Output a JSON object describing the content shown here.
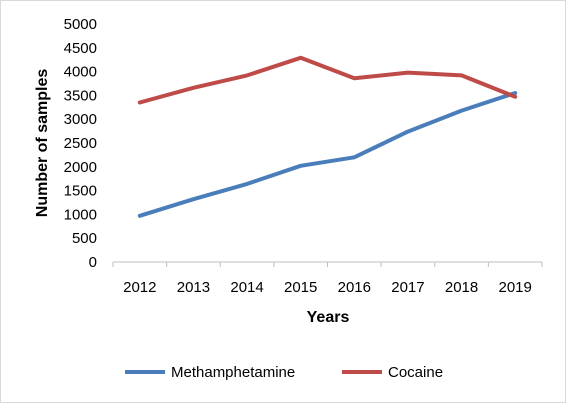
{
  "chart_data": {
    "type": "line",
    "title": "",
    "xlabel": "Years",
    "ylabel": "Number of samples",
    "categories": [
      "2012",
      "2013",
      "2014",
      "2015",
      "2016",
      "2017",
      "2018",
      "2019"
    ],
    "ylim": [
      0,
      5000
    ],
    "yticks": [
      0,
      500,
      1000,
      1500,
      2000,
      2500,
      3000,
      3500,
      4000,
      4500,
      5000
    ],
    "grid": false,
    "legend_position": "bottom",
    "series": [
      {
        "name": "Methamphetamine",
        "color": "#4a7ebb",
        "values": [
          970,
          1320,
          1640,
          2020,
          2200,
          2740,
          3180,
          3550
        ]
      },
      {
        "name": "Cocaine",
        "color": "#be4b48",
        "values": [
          3350,
          3660,
          3920,
          4290,
          3860,
          3980,
          3920,
          3470
        ]
      }
    ]
  }
}
